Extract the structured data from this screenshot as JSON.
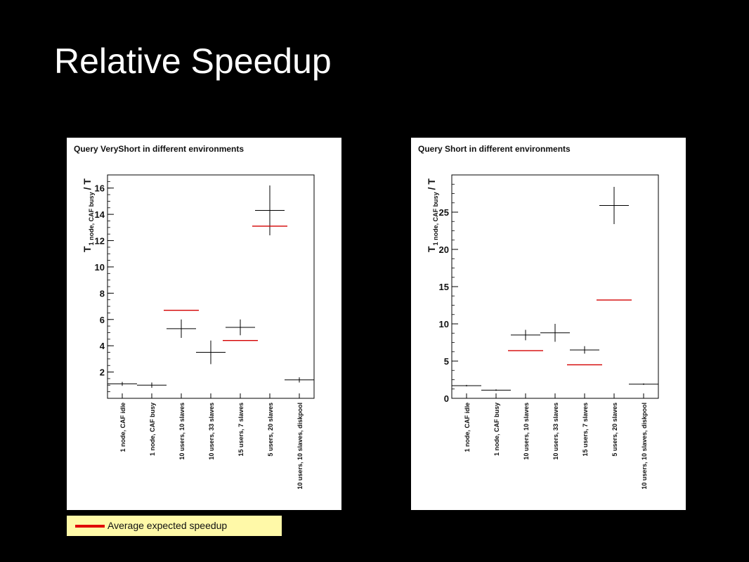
{
  "slide": {
    "title": "Relative Speedup"
  },
  "legend": {
    "label": "Average expected speedup",
    "color": "#e00000"
  },
  "colors": {
    "measured": "#000000",
    "expected": "#d40000",
    "background": "#000000",
    "panel": "#ffffff"
  },
  "chart_data": [
    {
      "type": "scatter",
      "title": "Query VeryShort in different environments",
      "ylabel": "T 1 node, CAF busy / T",
      "ylabel_main": "T",
      "ylabel_sub": "1 node, CAF busy",
      "ylabel_tail": "/ T",
      "categories": [
        "1 node, CAF idle",
        "1 node, CAF busy",
        "10 users, 10 slaves",
        "10 users, 33 slaves",
        "15 users, 7 slaves",
        "5 users, 20 slaves",
        "10 users, 10 slaves, diskpool"
      ],
      "ylim": [
        0,
        17
      ],
      "yticks": [
        2,
        4,
        6,
        8,
        10,
        12,
        14,
        16
      ],
      "series": [
        {
          "values": [
            1.1,
            1.0,
            5.3,
            3.5,
            5.4,
            14.3,
            1.4
          ],
          "errors": [
            0.15,
            0.2,
            0.7,
            0.9,
            0.6,
            1.9,
            0.2
          ]
        },
        {
          "name": "Average expected speedup",
          "values": [
            null,
            null,
            6.7,
            null,
            4.4,
            13.1,
            null
          ]
        }
      ]
    },
    {
      "type": "scatter",
      "title": "Query Short in different environments",
      "ylabel": "T 1 node, CAF busy / T",
      "ylabel_main": "T",
      "ylabel_sub": "1 node, CAF busy",
      "ylabel_tail": "/ T",
      "categories": [
        "1 node, CAF idle",
        "1 node, CAF busy",
        "10 users, 10 slaves",
        "10 users, 33 slaves",
        "15 users, 7 slaves",
        "5 users, 20 slaves",
        "10 users, 10 slaves, diskpool"
      ],
      "ylim": [
        0,
        30
      ],
      "yticks": [
        0,
        5,
        10,
        15,
        20,
        25
      ],
      "series": [
        {
          "values": [
            1.7,
            1.1,
            8.5,
            8.8,
            6.5,
            25.9,
            1.9
          ],
          "errors": [
            0.1,
            0.1,
            0.7,
            1.2,
            0.5,
            2.5,
            0.1
          ]
        },
        {
          "name": "Average expected speedup",
          "values": [
            null,
            null,
            6.4,
            null,
            4.5,
            13.2,
            null
          ]
        }
      ]
    }
  ]
}
